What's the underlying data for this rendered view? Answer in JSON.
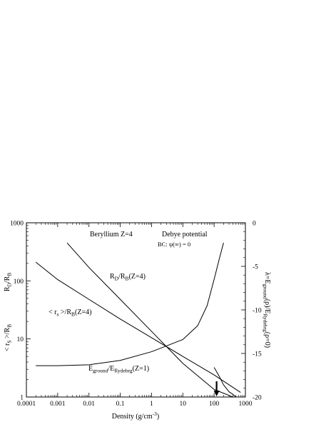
{
  "chart_data": {
    "type": "line",
    "x_scale": "log",
    "xlabel": "Density (g/cm",
    "xlabel_sup": "-3",
    "xlabel_end": ")",
    "xlim": [
      0.0001,
      1000
    ],
    "x_ticks": [
      "0.0001",
      "0.001",
      "0.01",
      "0.1",
      "1",
      "10",
      "100",
      "1000"
    ],
    "y_left": {
      "scale": "log",
      "label_main": "R",
      "label_sub": "D",
      "label_tail": "/R",
      "label_sub2": "B",
      "label2_main": "< r",
      "label2_sub": "S",
      "label2_tail": " >/R",
      "label2_sub2": "B",
      "ylim": [
        1,
        1000
      ],
      "ticks": [
        "1",
        "10",
        "100",
        "1000"
      ]
    },
    "y_right": {
      "scale": "linear",
      "label": "λ=E",
      "label_sub": "ground",
      "label_mid": "(ρ)/E",
      "label_sub2": "Rydebrg",
      "label_tail": "(ρ=0)",
      "ylim": [
        -20,
        0
      ],
      "ticks": [
        "0",
        "-5",
        "-10",
        "-15",
        "-20"
      ]
    },
    "annotations": {
      "title": "Beryllium Z=4",
      "potential": "Debye potential",
      "bc": "BC:  ψ(∞) = 0",
      "rd": {
        "a": "R",
        "a_sub": "D",
        "b": "/R",
        "b_sub": "B",
        "c": "(Z=4)"
      },
      "rs": {
        "a": "< r",
        "a_sub": "s",
        "b": " >/R",
        "b_sub": "B",
        "c": "(Z=4)"
      },
      "eg": {
        "a": "E",
        "a_sub": "ground",
        "b": "/E",
        "b_sub": "Rydebrg",
        "c": "(Z=1)"
      },
      "arrow_at_density": 120
    },
    "series": [
      {
        "axis": "left",
        "x": [
          0.002,
          0.01,
          0.1,
          1,
          10,
          100,
          1000
        ],
        "y": [
          450,
          170,
          48,
          13.5,
          3.8,
          1.35,
          0.82
        ]
      },
      {
        "axis": "left",
        "x": [
          0.0002,
          0.001,
          0.01,
          0.1,
          1,
          10,
          100,
          700
        ],
        "y": [
          210,
          105,
          48,
          22,
          10.5,
          5,
          2.4,
          1.2
        ]
      },
      {
        "axis": "right",
        "x": [
          0.0002,
          0.001,
          0.01,
          0.1,
          1,
          10,
          30,
          60,
          100,
          150,
          200
        ],
        "y": [
          -16.4,
          -16.4,
          -16.3,
          -15.8,
          -14.8,
          -13.4,
          -11.8,
          -9.5,
          -6.5,
          -4.0,
          -2.3
        ]
      },
      {
        "axis": "right",
        "x": [
          100,
          150,
          200,
          300,
          400,
          500
        ],
        "y": [
          -16.6,
          -17.7,
          -18.6,
          -19.4,
          -19.7,
          -20.0
        ]
      }
    ]
  }
}
